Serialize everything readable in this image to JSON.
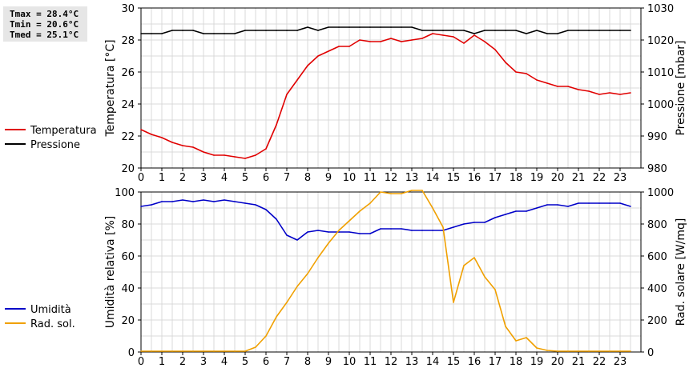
{
  "stats": {
    "tmax": "Tmax = 28.4°C",
    "tmin": "Tmin = 20.6°C",
    "tmed": "Tmed = 25.1°C"
  },
  "chart_data": [
    {
      "type": "line",
      "xlabel": "",
      "x_ticks": [
        0,
        1,
        2,
        3,
        4,
        5,
        6,
        7,
        8,
        9,
        10,
        11,
        12,
        13,
        14,
        15,
        16,
        17,
        18,
        19,
        20,
        21,
        22,
        23
      ],
      "xlim": [
        0,
        24
      ],
      "ylabel": "Temperatura [°C]",
      "ylim": [
        20,
        30
      ],
      "y_ticks": [
        20,
        22,
        24,
        26,
        28,
        30
      ],
      "y2label": "Pressione [mbar]",
      "y2lim": [
        980,
        1030
      ],
      "y2_ticks": [
        980,
        990,
        1000,
        1010,
        1020,
        1030
      ],
      "grid": true,
      "legend_placement": "left",
      "series": [
        {
          "name": "Temperatura",
          "axis": "left",
          "color": "#e00000",
          "x": [
            0,
            0.5,
            1,
            1.5,
            2,
            2.5,
            3,
            3.5,
            4,
            4.5,
            5,
            5.5,
            6,
            6.5,
            7,
            7.5,
            8,
            8.5,
            9,
            9.5,
            10,
            10.5,
            11,
            11.5,
            12,
            12.5,
            13,
            13.5,
            14,
            14.5,
            15,
            15.5,
            16,
            16.5,
            17,
            17.5,
            18,
            18.5,
            19,
            19.5,
            20,
            20.5,
            21,
            21.5,
            22,
            22.5,
            23,
            23.5
          ],
          "values": [
            22.4,
            22.1,
            21.9,
            21.6,
            21.4,
            21.3,
            21.0,
            20.8,
            20.8,
            20.7,
            20.6,
            20.8,
            21.2,
            22.7,
            24.6,
            25.5,
            26.4,
            27.0,
            27.3,
            27.6,
            27.6,
            28.0,
            27.9,
            27.9,
            28.1,
            27.9,
            28.0,
            28.1,
            28.4,
            28.3,
            28.2,
            27.8,
            28.3,
            27.9,
            27.4,
            26.6,
            26.0,
            25.9,
            25.5,
            25.3,
            25.1,
            25.1,
            24.9,
            24.8,
            24.6,
            24.7,
            24.6,
            24.7
          ]
        },
        {
          "name": "Pressione",
          "axis": "right",
          "color": "#000000",
          "x": [
            0,
            0.5,
            1,
            1.5,
            2,
            2.5,
            3,
            3.5,
            4,
            4.5,
            5,
            5.5,
            6,
            6.5,
            7,
            7.5,
            8,
            8.5,
            9,
            9.5,
            10,
            10.5,
            11,
            11.5,
            12,
            12.5,
            13,
            13.5,
            14,
            14.5,
            15,
            15.5,
            16,
            16.5,
            17,
            17.5,
            18,
            18.5,
            19,
            19.5,
            20,
            20.5,
            21,
            21.5,
            22,
            22.5,
            23,
            23.5
          ],
          "values": [
            1022,
            1022,
            1022,
            1023,
            1023,
            1023,
            1022,
            1022,
            1022,
            1022,
            1023,
            1023,
            1023,
            1023,
            1023,
            1023,
            1024,
            1023,
            1024,
            1024,
            1024,
            1024,
            1024,
            1024,
            1024,
            1024,
            1024,
            1023,
            1023,
            1023,
            1023,
            1023,
            1022,
            1023,
            1023,
            1023,
            1023,
            1022,
            1023,
            1022,
            1022,
            1023,
            1023,
            1023,
            1023,
            1023,
            1023,
            1023
          ]
        }
      ]
    },
    {
      "type": "line",
      "xlabel": "",
      "x_ticks": [
        0,
        1,
        2,
        3,
        4,
        5,
        6,
        7,
        8,
        9,
        10,
        11,
        12,
        13,
        14,
        15,
        16,
        17,
        18,
        19,
        20,
        21,
        22,
        23
      ],
      "xlim": [
        0,
        24
      ],
      "ylabel": "Umidità relativa [%]",
      "ylim": [
        0,
        100
      ],
      "y_ticks": [
        0,
        20,
        40,
        60,
        80,
        100
      ],
      "y2label": "Rad. solare [W/mq]",
      "y2lim": [
        0,
        1000
      ],
      "y2_ticks": [
        0,
        200,
        400,
        600,
        800,
        1000
      ],
      "grid": true,
      "legend_placement": "left",
      "series": [
        {
          "name": "Umidità",
          "axis": "left",
          "color": "#0000c8",
          "x": [
            0,
            0.5,
            1,
            1.5,
            2,
            2.5,
            3,
            3.5,
            4,
            4.5,
            5,
            5.5,
            6,
            6.5,
            7,
            7.5,
            8,
            8.5,
            9,
            9.5,
            10,
            10.5,
            11,
            11.5,
            12,
            12.5,
            13,
            13.5,
            14,
            14.5,
            15,
            15.5,
            16,
            16.5,
            17,
            17.5,
            18,
            18.5,
            19,
            19.5,
            20,
            20.5,
            21,
            21.5,
            22,
            22.5,
            23,
            23.5
          ],
          "values": [
            91,
            92,
            94,
            94,
            95,
            94,
            95,
            94,
            95,
            94,
            93,
            92,
            89,
            83,
            73,
            70,
            75,
            76,
            75,
            75,
            75,
            74,
            74,
            77,
            77,
            77,
            76,
            76,
            76,
            76,
            78,
            80,
            81,
            81,
            84,
            86,
            88,
            88,
            90,
            92,
            92,
            91,
            93,
            93,
            93,
            93,
            93,
            91
          ]
        },
        {
          "name": "Rad. sol.",
          "axis": "right",
          "color": "#f0a000",
          "x": [
            0,
            0.5,
            1,
            1.5,
            2,
            2.5,
            3,
            3.5,
            4,
            4.5,
            5,
            5.5,
            6,
            6.5,
            7,
            7.5,
            8,
            8.5,
            9,
            9.5,
            10,
            10.5,
            11,
            11.5,
            12,
            12.5,
            13,
            13.5,
            14,
            14.5,
            15,
            15.5,
            16,
            16.5,
            17,
            17.5,
            18,
            18.5,
            19,
            19.5,
            20,
            20.5,
            21,
            21.5,
            22,
            22.5,
            23,
            23.5
          ],
          "values": [
            5,
            5,
            5,
            5,
            5,
            5,
            5,
            5,
            5,
            5,
            5,
            30,
            100,
            220,
            310,
            410,
            490,
            590,
            680,
            760,
            820,
            880,
            930,
            1000,
            990,
            990,
            1010,
            1010,
            900,
            780,
            310,
            540,
            590,
            470,
            390,
            160,
            70,
            90,
            25,
            10,
            5,
            5,
            5,
            5,
            5,
            5,
            5,
            5
          ]
        }
      ]
    }
  ]
}
